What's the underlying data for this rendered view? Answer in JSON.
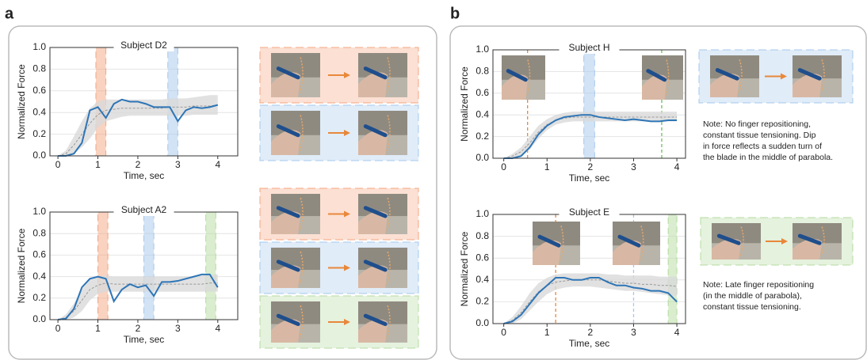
{
  "panel_labels": [
    "a",
    "b"
  ],
  "notes": [
    [
      "Note: No finger repositioning,",
      "constant tissue tensioning. Dip",
      "in force reflects a sudden turn of",
      "the blade in the middle of parabola."
    ],
    [
      "Note: Late finger repositioning",
      "(in the middle of parabola),",
      "constant tissue tensioning."
    ]
  ],
  "chart_data": [
    {
      "type": "line",
      "title": "Subject D2",
      "x_label": "Time, sec",
      "y_label": "Normalized Force",
      "xlim": [
        -0.2,
        4.5
      ],
      "ylim": [
        0,
        1
      ],
      "xticks": [
        0,
        1,
        2,
        3,
        4
      ],
      "yticks": [
        {
          "value": 0,
          "label": "0.0"
        },
        {
          "value": 0.2,
          "label": "0.2"
        },
        {
          "value": 0.4,
          "label": "0.4"
        },
        {
          "value": 0.6,
          "label": "0.6"
        },
        {
          "value": 0.8,
          "label": "0.8"
        },
        {
          "value": 1,
          "label": "1.0"
        }
      ],
      "grid": true,
      "x": [
        0,
        0.2,
        0.4,
        0.6,
        0.8,
        1.0,
        1.2,
        1.4,
        1.6,
        1.8,
        2.0,
        2.2,
        2.4,
        2.6,
        2.8,
        3.0,
        3.2,
        3.4,
        3.6,
        3.8,
        4.0
      ],
      "line": {
        "color": "#2e75b6",
        "values": [
          0,
          0,
          0.02,
          0.12,
          0.42,
          0.45,
          0.35,
          0.48,
          0.52,
          0.5,
          0.5,
          0.48,
          0.45,
          0.45,
          0.45,
          0.32,
          0.42,
          0.45,
          0.44,
          0.45,
          0.47
        ]
      },
      "mean": {
        "color": "#999999",
        "values": [
          0,
          0.02,
          0.1,
          0.2,
          0.3,
          0.38,
          0.42,
          0.43,
          0.44,
          0.44,
          0.44,
          0.44,
          0.44,
          0.44,
          0.45,
          0.45,
          0.45,
          0.46,
          0.46,
          0.46,
          0.47
        ]
      },
      "band": {
        "color": "#d9d9d9",
        "lower": [
          0,
          0,
          0.02,
          0.08,
          0.16,
          0.26,
          0.32,
          0.34,
          0.36,
          0.37,
          0.37,
          0.37,
          0.37,
          0.37,
          0.37,
          0.37,
          0.37,
          0.38,
          0.38,
          0.38,
          0.38
        ],
        "upper": [
          0,
          0.05,
          0.18,
          0.32,
          0.44,
          0.5,
          0.52,
          0.52,
          0.52,
          0.52,
          0.52,
          0.52,
          0.52,
          0.52,
          0.53,
          0.53,
          0.53,
          0.54,
          0.55,
          0.56,
          0.56
        ]
      },
      "spans": [
        {
          "start": 0.95,
          "end": 1.2,
          "color": "#f4a582"
        },
        {
          "start": 2.75,
          "end": 3.0,
          "color": "#a6c8ec"
        }
      ],
      "vlines": []
    },
    {
      "type": "line",
      "title": "Subject A2",
      "x_label": "Time, sec",
      "y_label": "Normalized Force",
      "xlim": [
        -0.2,
        4.5
      ],
      "ylim": [
        0,
        1
      ],
      "xticks": [
        0,
        1,
        2,
        3,
        4
      ],
      "yticks": [
        {
          "value": 0,
          "label": "0.0"
        },
        {
          "value": 0.2,
          "label": "0.2"
        },
        {
          "value": 0.4,
          "label": "0.4"
        },
        {
          "value": 0.6,
          "label": "0.6"
        },
        {
          "value": 0.8,
          "label": "0.8"
        },
        {
          "value": 1,
          "label": "1.0"
        }
      ],
      "grid": true,
      "x": [
        0,
        0.2,
        0.4,
        0.6,
        0.8,
        1.0,
        1.2,
        1.4,
        1.6,
        1.8,
        2.0,
        2.2,
        2.4,
        2.6,
        2.8,
        3.0,
        3.2,
        3.4,
        3.6,
        3.8,
        4.0
      ],
      "line": {
        "color": "#2e75b6",
        "values": [
          0,
          0.01,
          0.1,
          0.3,
          0.38,
          0.4,
          0.38,
          0.17,
          0.28,
          0.33,
          0.3,
          0.32,
          0.22,
          0.35,
          0.35,
          0.36,
          0.38,
          0.4,
          0.42,
          0.42,
          0.3
        ]
      },
      "mean": {
        "color": "#999999",
        "values": [
          0,
          0.02,
          0.08,
          0.18,
          0.28,
          0.32,
          0.34,
          0.33,
          0.33,
          0.33,
          0.33,
          0.33,
          0.33,
          0.33,
          0.33,
          0.33,
          0.33,
          0.33,
          0.33,
          0.34,
          0.34
        ]
      },
      "band": {
        "color": "#d9d9d9",
        "lower": [
          0,
          0,
          0.02,
          0.08,
          0.18,
          0.24,
          0.26,
          0.26,
          0.26,
          0.26,
          0.26,
          0.26,
          0.26,
          0.26,
          0.26,
          0.26,
          0.26,
          0.26,
          0.26,
          0.26,
          0.26
        ],
        "upper": [
          0,
          0.05,
          0.15,
          0.28,
          0.37,
          0.4,
          0.41,
          0.4,
          0.4,
          0.4,
          0.4,
          0.4,
          0.4,
          0.4,
          0.4,
          0.4,
          0.4,
          0.4,
          0.41,
          0.42,
          0.42
        ]
      },
      "spans": [
        {
          "start": 1.0,
          "end": 1.25,
          "color": "#f4a582"
        },
        {
          "start": 2.15,
          "end": 2.4,
          "color": "#a6c8ec"
        },
        {
          "start": 3.7,
          "end": 3.95,
          "color": "#b5dba0"
        }
      ],
      "vlines": []
    },
    {
      "type": "line",
      "title": "Subject H",
      "x_label": "Time, sec",
      "y_label": "Normalized Force",
      "xlim": [
        -0.25,
        4.2
      ],
      "ylim": [
        0,
        1
      ],
      "xticks": [
        0,
        1,
        2,
        3,
        4
      ],
      "yticks": [
        {
          "value": 0,
          "label": "0.0"
        },
        {
          "value": 0.2,
          "label": "0.2"
        },
        {
          "value": 0.4,
          "label": "0.4"
        },
        {
          "value": 0.6,
          "label": "0.6"
        },
        {
          "value": 0.8,
          "label": "0.8"
        },
        {
          "value": 1,
          "label": "1.0"
        }
      ],
      "grid": true,
      "x": [
        0,
        0.2,
        0.4,
        0.6,
        0.8,
        1.0,
        1.2,
        1.4,
        1.6,
        1.8,
        2.0,
        2.2,
        2.4,
        2.6,
        2.8,
        3.0,
        3.2,
        3.4,
        3.6,
        3.8,
        4.0
      ],
      "line": {
        "color": "#2e75b6",
        "values": [
          0,
          0,
          0.02,
          0.1,
          0.22,
          0.3,
          0.35,
          0.38,
          0.39,
          0.4,
          0.4,
          0.38,
          0.37,
          0.36,
          0.35,
          0.36,
          0.35,
          0.34,
          0.34,
          0.35,
          0.35
        ]
      },
      "mean": {
        "color": "#999999",
        "values": [
          0,
          0.02,
          0.06,
          0.14,
          0.24,
          0.31,
          0.35,
          0.37,
          0.38,
          0.38,
          0.38,
          0.38,
          0.38,
          0.38,
          0.38,
          0.38,
          0.38,
          0.38,
          0.38,
          0.38,
          0.38
        ]
      },
      "band": {
        "color": "#d9d9d9",
        "lower": [
          0,
          0,
          0.02,
          0.08,
          0.18,
          0.26,
          0.31,
          0.33,
          0.34,
          0.34,
          0.34,
          0.34,
          0.34,
          0.34,
          0.34,
          0.34,
          0.34,
          0.34,
          0.34,
          0.34,
          0.34
        ],
        "upper": [
          0,
          0.04,
          0.1,
          0.2,
          0.3,
          0.36,
          0.4,
          0.42,
          0.43,
          0.43,
          0.43,
          0.43,
          0.43,
          0.43,
          0.43,
          0.43,
          0.43,
          0.43,
          0.43,
          0.43,
          0.43
        ]
      },
      "spans": [
        {
          "start": 1.85,
          "end": 2.1,
          "color": "#a6c8ec"
        }
      ],
      "vlines": [
        {
          "x": 0.55,
          "color": "#e8883a"
        },
        {
          "x": 3.65,
          "color": "#6bbf59"
        }
      ]
    },
    {
      "type": "line",
      "title": "Subject E",
      "x_label": "Time, sec",
      "y_label": "Normalized Force",
      "xlim": [
        -0.25,
        4.2
      ],
      "ylim": [
        0,
        1
      ],
      "xticks": [
        0,
        1,
        2,
        3,
        4
      ],
      "yticks": [
        {
          "value": 0,
          "label": "0.0"
        },
        {
          "value": 0.2,
          "label": "0.2"
        },
        {
          "value": 0.4,
          "label": "0.4"
        },
        {
          "value": 0.6,
          "label": "0.6"
        },
        {
          "value": 0.8,
          "label": "0.8"
        },
        {
          "value": 1,
          "label": "1.0"
        }
      ],
      "grid": true,
      "x": [
        0,
        0.2,
        0.4,
        0.6,
        0.8,
        1.0,
        1.2,
        1.4,
        1.6,
        1.8,
        2.0,
        2.2,
        2.4,
        2.6,
        2.8,
        3.0,
        3.2,
        3.4,
        3.6,
        3.8,
        4.0
      ],
      "line": {
        "color": "#2e75b6",
        "values": [
          0,
          0.02,
          0.08,
          0.18,
          0.28,
          0.35,
          0.42,
          0.42,
          0.4,
          0.4,
          0.42,
          0.42,
          0.38,
          0.35,
          0.35,
          0.33,
          0.32,
          0.3,
          0.3,
          0.28,
          0.2
        ]
      },
      "mean": {
        "color": "#999999",
        "values": [
          0,
          0.03,
          0.1,
          0.2,
          0.29,
          0.35,
          0.38,
          0.39,
          0.4,
          0.4,
          0.4,
          0.4,
          0.39,
          0.38,
          0.37,
          0.37,
          0.36,
          0.36,
          0.35,
          0.35,
          0.34
        ]
      },
      "band": {
        "color": "#d9d9d9",
        "lower": [
          0,
          0,
          0.04,
          0.12,
          0.2,
          0.27,
          0.31,
          0.33,
          0.34,
          0.34,
          0.34,
          0.33,
          0.32,
          0.31,
          0.3,
          0.3,
          0.29,
          0.28,
          0.27,
          0.26,
          0.25
        ],
        "upper": [
          0,
          0.06,
          0.16,
          0.28,
          0.37,
          0.42,
          0.45,
          0.46,
          0.46,
          0.46,
          0.46,
          0.46,
          0.45,
          0.45,
          0.44,
          0.44,
          0.44,
          0.44,
          0.43,
          0.43,
          0.43
        ]
      },
      "spans": [
        {
          "start": 3.8,
          "end": 4.0,
          "color": "#b5dba0"
        }
      ],
      "vlines": [
        {
          "x": 1.2,
          "color": "#e8883a"
        },
        {
          "x": 3.0,
          "color": "#a6c8ec"
        }
      ]
    }
  ]
}
